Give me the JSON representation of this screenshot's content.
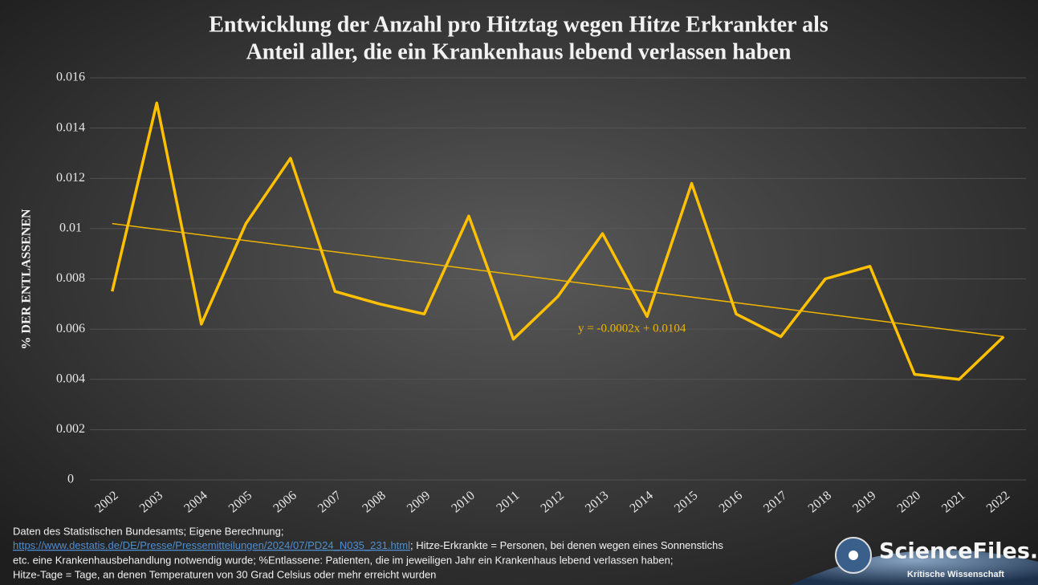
{
  "chart_data": {
    "type": "line",
    "title": [
      "Entwicklung der Anzahl pro Hitztag wegen Hitze Erkrankter als",
      "Anteil aller, die ein Krankenhaus lebend verlassen haben"
    ],
    "y_label": "% DER ENTLASSENEN",
    "categories": [
      "2002",
      "2003",
      "2004",
      "2005",
      "2006",
      "2007",
      "2008",
      "2009",
      "2010",
      "2011",
      "2012",
      "2013",
      "2014",
      "2015",
      "2016",
      "2017",
      "2018",
      "2019",
      "2020",
      "2021",
      "2022"
    ],
    "series": [
      {
        "name": "% der Entlassenen",
        "color": "#ffc000",
        "values": [
          0.0075,
          0.015,
          0.0062,
          0.0102,
          0.0128,
          0.0075,
          0.007,
          0.0066,
          0.0105,
          0.0056,
          0.0073,
          0.0098,
          0.0065,
          0.0118,
          0.0066,
          0.0057,
          0.008,
          0.0085,
          0.0042,
          0.004,
          0.0057
        ]
      }
    ],
    "trendline": {
      "label": "y = -0.0002x + 0.0104",
      "color": "#f0b400",
      "start": 0.0102,
      "end": 0.0057
    },
    "ylim": [
      0,
      0.016
    ],
    "yticks": [
      0,
      0.002,
      0.004,
      0.006,
      0.008,
      0.01,
      0.012,
      0.014,
      0.016
    ],
    "grid": true,
    "source": {
      "line1": "Daten des Statistischen Bundesamts; Eigene Berechnung;",
      "link": "https://www.destatis.de/DE/Presse/Pressemitteilungen/2024/07/PD24_N035_231.html",
      "line2": "; Hitze-Erkrankte = Personen, bei denen wegen eines Sonnenstichs",
      "line3": "etc. eine Krankenhausbehandlung notwendig wurde; %Entlassene: Patienten, die im jeweiligen Jahr ein Krankenhaus lebend verlassen haben;",
      "line4": "Hitze-Tage = Tage, an denen Temperaturen von 30 Grad Celsius oder mehr erreicht wurden"
    },
    "logo": {
      "name": "ScienceFiles.org",
      "tagline": "Kritische Wissenschaft"
    }
  }
}
